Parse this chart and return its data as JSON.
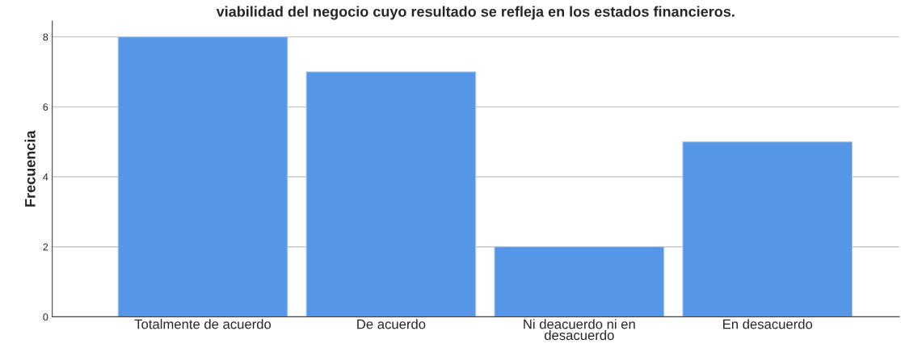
{
  "chart_data": {
    "type": "bar",
    "title": "viabilidad del negocio cuyo resultado se refleja en los estados financieros.",
    "ylabel": "Frecuencia",
    "categories": [
      "Totalmente de acuerdo",
      "De acuerdo",
      "Ni deacuerdo ni en\ndesacuerdo",
      "En desacuerdo"
    ],
    "values": [
      8,
      7,
      2,
      5
    ],
    "color": "#5596e6",
    "ylim": [
      0,
      8.45
    ],
    "yticks": [
      0,
      2,
      4,
      6,
      8
    ],
    "grid": "y"
  }
}
